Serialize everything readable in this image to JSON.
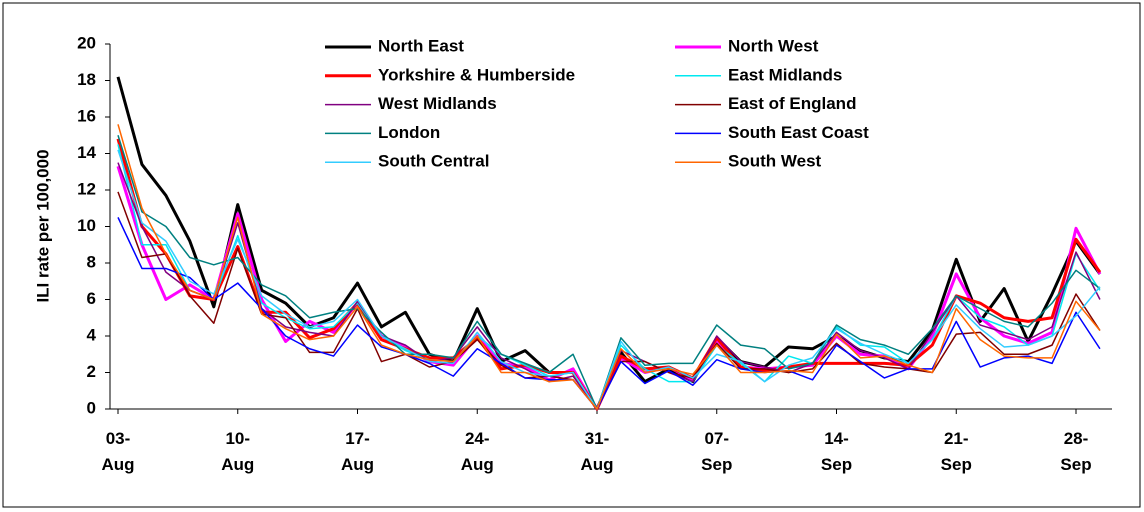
{
  "chart_data": {
    "type": "line",
    "y_label": "ILI rate per 100,000",
    "categories": [
      "03-Aug",
      null,
      null,
      null,
      null,
      "10-Aug",
      null,
      null,
      null,
      null,
      "17-Aug",
      null,
      null,
      null,
      null,
      "24-Aug",
      null,
      null,
      null,
      null,
      "31-Aug",
      null,
      null,
      null,
      null,
      "07-Sep",
      null,
      null,
      null,
      null,
      "14-Sep",
      null,
      null,
      null,
      null,
      "21-Sep",
      null,
      null,
      null,
      null,
      "28-Sep",
      null
    ],
    "ylim": [
      0,
      20
    ],
    "yticks": [
      0,
      2,
      4,
      6,
      8,
      10,
      12,
      14,
      16,
      18,
      20
    ],
    "series": [
      {
        "name": "North East",
        "color": "#000000",
        "width": 3,
        "values": [
          18.2,
          13.4,
          11.7,
          9.2,
          5.6,
          11.2,
          6.5,
          5.8,
          4.5,
          5.0,
          6.9,
          4.5,
          5.3,
          3.0,
          2.6,
          5.5,
          2.6,
          3.2,
          2.0,
          2.0,
          0,
          3.1,
          1.5,
          2.2,
          1.5,
          3.9,
          2.6,
          2.3,
          3.4,
          3.3,
          4.0,
          3.2,
          2.8,
          2.6,
          4.3,
          8.2,
          4.8,
          6.6,
          3.7,
          6.3,
          9.2,
          7.4
        ]
      },
      {
        "name": "North West",
        "color": "#ff00ff",
        "width": 3,
        "values": [
          13.3,
          9.0,
          6.0,
          6.8,
          6.0,
          10.7,
          6.0,
          3.7,
          4.8,
          4.2,
          5.8,
          4.0,
          3.4,
          2.6,
          2.4,
          4.0,
          2.5,
          2.3,
          1.6,
          2.2,
          0,
          2.8,
          2.0,
          2.3,
          1.6,
          3.8,
          2.3,
          2.2,
          2.3,
          2.4,
          4.0,
          3.0,
          2.9,
          2.2,
          4.0,
          7.4,
          5.0,
          4.0,
          3.6,
          4.2,
          9.9,
          7.4
        ]
      },
      {
        "name": "Yorkshire & Humberside",
        "color": "#ff0000",
        "width": 3,
        "values": [
          14.8,
          10.0,
          8.5,
          6.2,
          6.0,
          8.9,
          5.3,
          5.3,
          3.9,
          4.4,
          5.8,
          3.8,
          3.3,
          2.8,
          2.8,
          3.9,
          2.2,
          2.4,
          2.0,
          2.0,
          0,
          2.9,
          2.2,
          2.3,
          1.7,
          3.9,
          2.3,
          2.1,
          2.3,
          2.5,
          2.5,
          2.5,
          2.5,
          2.4,
          3.5,
          6.2,
          5.8,
          5.0,
          4.8,
          5.0,
          9.3,
          7.5
        ]
      },
      {
        "name": "East Midlands",
        "color": "#00e8f0",
        "width": 1.5,
        "values": [
          14.5,
          9.0,
          9.0,
          6.5,
          6.0,
          9.5,
          5.8,
          5.0,
          4.4,
          4.5,
          5.8,
          4.0,
          3.2,
          2.7,
          2.6,
          4.0,
          3.0,
          2.4,
          1.8,
          2.0,
          0,
          3.5,
          2.2,
          1.5,
          1.5,
          3.5,
          2.5,
          1.5,
          2.9,
          2.5,
          4.5,
          3.5,
          3.4,
          2.5,
          3.8,
          6.2,
          5.0,
          4.5,
          3.5,
          4.0,
          8.5,
          6.5
        ]
      },
      {
        "name": "West Midlands",
        "color": "#800080",
        "width": 1.5,
        "values": [
          13.5,
          10.0,
          7.5,
          6.5,
          6.0,
          10.2,
          5.5,
          4.5,
          4.2,
          4.0,
          5.9,
          4.0,
          3.5,
          2.6,
          2.8,
          4.5,
          2.8,
          2.2,
          1.5,
          1.8,
          0,
          3.2,
          2.6,
          2.0,
          1.5,
          4.0,
          2.6,
          2.3,
          2.0,
          2.5,
          4.2,
          3.2,
          2.8,
          2.2,
          4.2,
          6.2,
          4.6,
          4.2,
          3.8,
          4.5,
          8.6,
          6.0
        ]
      },
      {
        "name": "East of England",
        "color": "#800000",
        "width": 1.5,
        "values": [
          11.9,
          8.3,
          8.5,
          6.2,
          4.7,
          8.8,
          5.2,
          5.0,
          3.1,
          3.1,
          5.5,
          2.6,
          3.0,
          2.3,
          2.6,
          3.8,
          2.4,
          1.7,
          1.8,
          1.6,
          0,
          2.6,
          2.6,
          2.0,
          1.7,
          3.6,
          2.2,
          2.2,
          2.0,
          2.2,
          3.6,
          2.5,
          2.3,
          2.2,
          2.0,
          4.1,
          4.2,
          3.0,
          3.0,
          3.5,
          6.3,
          4.3
        ]
      },
      {
        "name": "London",
        "color": "#008080",
        "width": 1.5,
        "values": [
          15.0,
          10.8,
          10.0,
          8.3,
          7.9,
          8.3,
          6.8,
          6.2,
          5.0,
          5.3,
          5.5,
          4.2,
          3.0,
          3.0,
          2.8,
          4.8,
          3.0,
          2.5,
          2.0,
          3.0,
          0,
          3.9,
          2.4,
          2.5,
          2.5,
          4.6,
          3.5,
          3.3,
          2.2,
          2.5,
          4.6,
          3.8,
          3.5,
          3.0,
          4.4,
          6.2,
          5.5,
          4.8,
          4.5,
          5.8,
          7.6,
          6.6
        ]
      },
      {
        "name": "South East Coast",
        "color": "#0000ff",
        "width": 1.5,
        "values": [
          10.5,
          7.7,
          7.7,
          7.2,
          6.0,
          6.9,
          5.5,
          4.0,
          3.3,
          2.9,
          4.6,
          3.4,
          3.0,
          2.5,
          1.8,
          3.3,
          2.5,
          1.7,
          1.6,
          1.6,
          0,
          2.6,
          1.4,
          2.1,
          1.3,
          2.7,
          2.2,
          2.0,
          2.1,
          1.6,
          3.5,
          2.6,
          1.7,
          2.2,
          2.2,
          4.8,
          2.3,
          2.8,
          2.9,
          2.5,
          5.3,
          3.3
        ]
      },
      {
        "name": "South Central",
        "color": "#33ccff",
        "width": 1.5,
        "values": [
          14.2,
          10.2,
          9.2,
          7.0,
          6.3,
          9.3,
          6.2,
          5.2,
          4.5,
          4.8,
          6.0,
          4.0,
          3.3,
          2.6,
          2.5,
          4.2,
          2.6,
          2.0,
          1.8,
          2.0,
          0,
          3.7,
          2.0,
          2.3,
          1.7,
          3.0,
          2.6,
          1.5,
          2.4,
          2.8,
          4.4,
          3.6,
          3.0,
          2.5,
          3.8,
          5.7,
          4.4,
          3.4,
          3.5,
          4.0,
          5.1,
          6.7
        ]
      },
      {
        "name": "South West",
        "color": "#ff6600",
        "width": 1.5,
        "values": [
          15.6,
          11.0,
          8.5,
          6.5,
          6.0,
          10.5,
          5.2,
          4.4,
          3.8,
          4.0,
          5.6,
          3.5,
          3.0,
          2.7,
          2.6,
          4.0,
          2.0,
          2.0,
          1.5,
          1.6,
          0,
          3.3,
          2.0,
          2.2,
          1.9,
          3.5,
          2.0,
          2.0,
          2.1,
          2.0,
          4.1,
          2.8,
          2.9,
          2.4,
          2.0,
          5.5,
          3.8,
          2.9,
          2.8,
          2.8,
          5.9,
          4.3
        ]
      }
    ]
  }
}
